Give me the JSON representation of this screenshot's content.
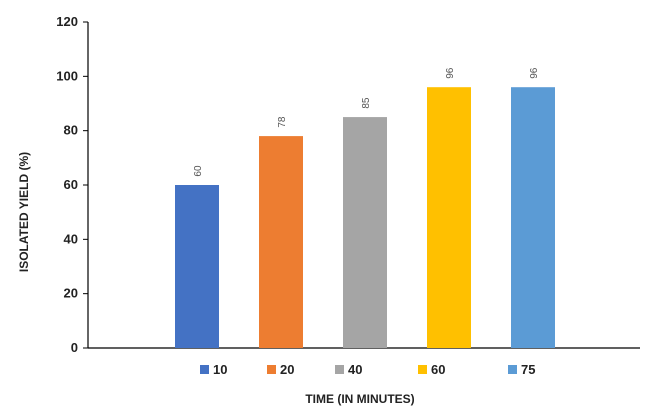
{
  "chart_data": {
    "type": "bar",
    "categories": [
      "10",
      "20",
      "40",
      "60",
      "75"
    ],
    "values": [
      60,
      78,
      85,
      96,
      96
    ],
    "data_labels": [
      "60",
      "78",
      "85",
      "96",
      "96"
    ],
    "colors": [
      "#4472C4",
      "#ED7D31",
      "#A5A5A5",
      "#FFC000",
      "#5B9BD5"
    ],
    "xlabel": "TIME (IN MINUTES)",
    "ylabel": "ISOLATED YIELD (%)",
    "ylim": [
      0,
      120
    ],
    "yticks": [
      "0",
      "20",
      "40",
      "60",
      "80",
      "100",
      "120"
    ],
    "grid": false,
    "legend": {
      "placement": "bottom",
      "entries": [
        "10",
        "20",
        "40",
        "60",
        "75"
      ]
    }
  }
}
